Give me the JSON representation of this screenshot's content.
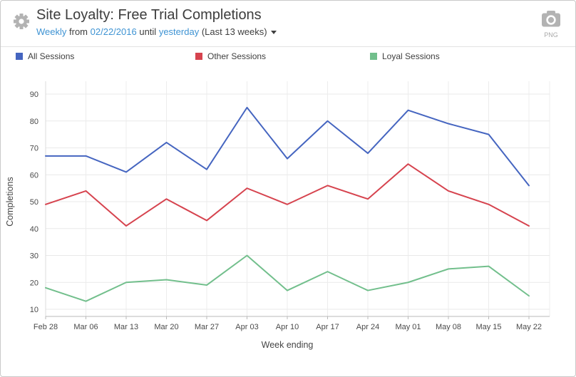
{
  "header": {
    "title": "Site Loyalty: Free Trial Completions",
    "subtitle": {
      "frequency": "Weekly",
      "from_word": "from",
      "start_date": "02/22/2016",
      "until_word": "until",
      "end_date": "yesterday",
      "range_note": "(Last 13 weeks)"
    },
    "export": {
      "format_label": "PNG"
    }
  },
  "legend": {
    "items": [
      {
        "label": "All Sessions",
        "color": "#4565c0"
      },
      {
        "label": "Other Sessions",
        "color": "#d6434e"
      },
      {
        "label": "Loyal Sessions",
        "color": "#72bf8c"
      }
    ]
  },
  "chart_data": {
    "type": "line",
    "x": [
      "Feb 28",
      "Mar 06",
      "Mar 13",
      "Mar 20",
      "Mar 27",
      "Apr 03",
      "Apr 10",
      "Apr 17",
      "Apr 24",
      "May 01",
      "May 08",
      "May 15",
      "May 22"
    ],
    "series": [
      {
        "name": "All Sessions",
        "color": "#4565c0",
        "values": [
          67,
          67,
          61,
          72,
          62,
          85,
          66,
          80,
          68,
          84,
          79,
          75,
          56
        ]
      },
      {
        "name": "Other Sessions",
        "color": "#d6434e",
        "values": [
          49,
          54,
          41,
          51,
          43,
          55,
          49,
          56,
          51,
          64,
          54,
          49,
          41
        ]
      },
      {
        "name": "Loyal Sessions",
        "color": "#72bf8c",
        "values": [
          18,
          13,
          20,
          21,
          19,
          30,
          17,
          24,
          17,
          20,
          25,
          26,
          15
        ]
      }
    ],
    "title": "Site Loyalty: Free Trial Completions",
    "xlabel": "Week ending",
    "ylabel": "Completions",
    "yticks": [
      10,
      20,
      30,
      40,
      50,
      60,
      70,
      80,
      90
    ],
    "ylim": [
      7,
      94
    ],
    "grid": true,
    "legend_position": "top"
  },
  "colors": {
    "accent_link": "#3e93d3",
    "grid_line": "#e9e9e9",
    "axis_line": "#b9b9b9",
    "tick_label": "#4a4a4a",
    "icon_gray": "#b3b3b3"
  }
}
